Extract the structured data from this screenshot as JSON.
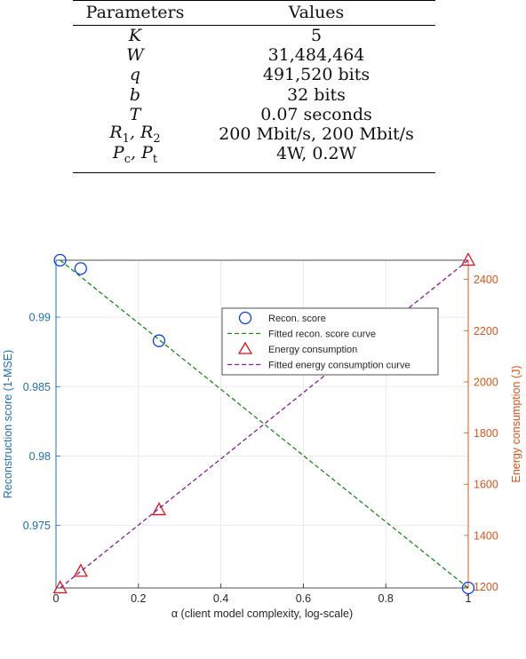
{
  "table": {
    "headers": [
      "Parameters",
      "Values"
    ],
    "rows": [
      {
        "param": "K",
        "value": "5"
      },
      {
        "param": "W",
        "value": "31,484,464"
      },
      {
        "param": "q",
        "value": "491,520 bits"
      },
      {
        "param": "b",
        "value": "32 bits"
      },
      {
        "param": "T",
        "value": "0.07 seconds"
      },
      {
        "param": "R1, R2",
        "value": "200 Mbit/s, 200 Mbit/s"
      },
      {
        "param": "Pc, Pt",
        "value": "4W, 0.2W"
      }
    ]
  },
  "chart_data": {
    "type": "scatter",
    "xlabel": "α (client model complexity, log-scale)",
    "ylabel_left": "Reconstruction score (1-MSE)",
    "ylabel_right": "Energy consumption (J)",
    "xlim": [
      0,
      1
    ],
    "ylim_left": [
      0.9705,
      0.9941
    ],
    "ylim_right": [
      1195,
      2475
    ],
    "xticks": [
      "0",
      "0.2",
      "0.4",
      "0.6",
      "0.8",
      "1"
    ],
    "yticks_left": [
      "0.975",
      "0.98",
      "0.985",
      "0.99"
    ],
    "yticks_right": [
      "1200",
      "1400",
      "1600",
      "1800",
      "2000",
      "2200",
      "2400"
    ],
    "grid": true,
    "legend_position": "center-right",
    "colors": {
      "recon": "#0a3cff",
      "recon_fit": "#1a8a1a",
      "energy": "#e81010",
      "energy_fit": "#8b1a9c",
      "left_axis": "#1f6fb3",
      "right_axis": "#d95319"
    },
    "series": [
      {
        "name": "Recon. score",
        "axis": "left",
        "marker": "circle",
        "x": [
          0.01,
          0.06,
          0.25,
          1.0
        ],
        "y": [
          0.9941,
          0.9935,
          0.9883,
          0.9705
        ]
      },
      {
        "name": "Fitted recon. score curve",
        "axis": "left",
        "line": "dashed",
        "x": [
          0.01,
          1.0
        ],
        "y": [
          0.9941,
          0.9705
        ]
      },
      {
        "name": "Energy consumption",
        "axis": "right",
        "marker": "triangle",
        "x": [
          0.01,
          0.06,
          0.25,
          1.0
        ],
        "y": [
          1195,
          1260,
          1500,
          2475
        ]
      },
      {
        "name": "Fitted energy consumption curve",
        "axis": "right",
        "line": "dashed",
        "x": [
          0.01,
          1.0
        ],
        "y": [
          1195,
          2475
        ]
      }
    ]
  }
}
